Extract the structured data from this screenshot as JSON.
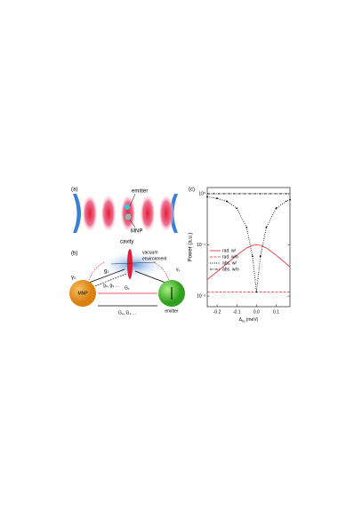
{
  "panel_a": {
    "label": "(a)",
    "emitter": "emitter",
    "mnp": "MNP"
  },
  "panel_b": {
    "label": "(b)",
    "cavity": "cavity",
    "vacuum": [
      "vacuum",
      "environment"
    ],
    "mnp": "MNP",
    "emitter": "emitter",
    "gamma0": "γ₀",
    "gamma1": "γ₁",
    "g1": "g₁",
    "g_more": "g₂, g₃ ...",
    "G1": "G₁",
    "G_more": "G₂, G₃ ..."
  },
  "chart_data": {
    "type": "line",
    "panel_label": "(c)",
    "ylabel": "Power (a.u.)",
    "xlabel": {
      "symbol": "Δ",
      "subscript": "bc",
      "unit": "(meV)"
    },
    "x": [
      -0.25,
      -0.2,
      -0.15,
      -0.1,
      -0.05,
      -0.02,
      0,
      0.02,
      0.05,
      0.1,
      0.15,
      0.17
    ],
    "xlim": [
      -0.25,
      0.17
    ],
    "xticks": [
      -0.2,
      -0.1,
      {
        "value": 0,
        "label": "0.0"
      },
      0.1
    ],
    "ylim": [
      0.0062,
      1.32
    ],
    "log_y": true,
    "yticks": [
      {
        "value": 1,
        "label": "10⁰"
      },
      {
        "value": 0.1,
        "label": "10⁻¹"
      },
      {
        "value": 0.01,
        "label": "10⁻²"
      }
    ],
    "legend": "center left",
    "series": [
      {
        "name": "rad. w/",
        "color": "#e8202a",
        "style": "solid",
        "values": [
          0.021,
          0.03,
          0.043,
          0.063,
          0.087,
          0.098,
          0.1,
          0.098,
          0.087,
          0.063,
          0.043,
          0.037
        ]
      },
      {
        "name": "rad. w/o",
        "color": "#e8202a",
        "style": "dashed",
        "values": [
          0.012,
          0.012,
          0.012,
          0.012,
          0.012,
          0.012,
          0.012,
          0.012,
          0.012,
          0.012,
          0.012,
          0.012
        ]
      },
      {
        "name": "abs. w/",
        "color": "#000000",
        "style": "dotted",
        "values": [
          0.87,
          0.81,
          0.71,
          0.52,
          0.22,
          0.06,
          0.012,
          0.06,
          0.22,
          0.52,
          0.71,
          0.76
        ]
      },
      {
        "name": "abs. w/o",
        "color": "#000000",
        "style": "dashdot",
        "values": [
          1.0,
          1.0,
          1.0,
          1.0,
          1.0,
          1.0,
          1.0,
          1.0,
          1.0,
          1.0,
          1.0,
          1.0
        ]
      }
    ]
  }
}
